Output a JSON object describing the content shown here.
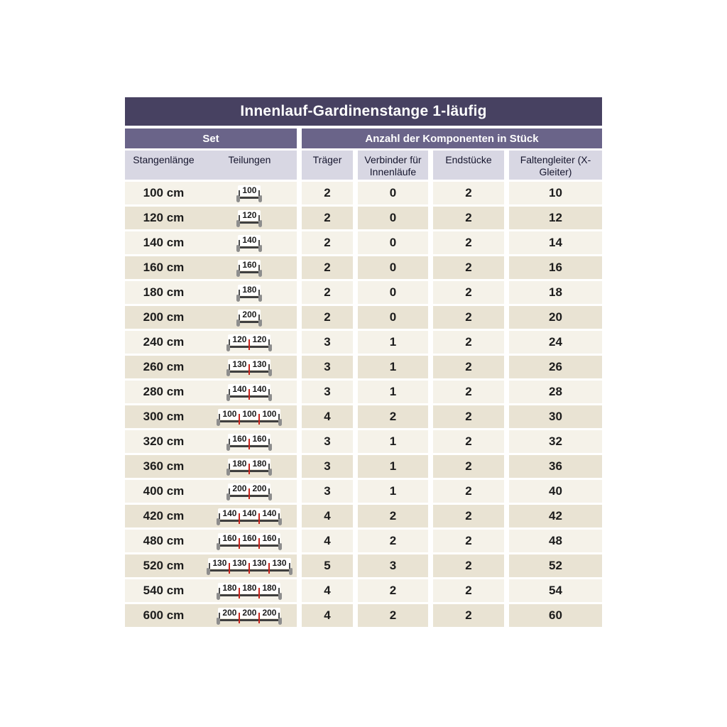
{
  "colors": {
    "title_bar": "#474161",
    "group_bar": "#6a6489",
    "column_header_bg": "#d8d7e3",
    "row_light": "#f5f2e9",
    "row_dark": "#e9e3d3",
    "connector_tick": "#c9251d",
    "rod_line": "#3f3f3f",
    "rod_end_post": "#8d8d8d"
  },
  "chart_data": {
    "type": "table",
    "title": "Innenlauf-Gardinenstange 1-läufig",
    "group_headers": [
      "Set",
      "Anzahl der Komponenten in Stück"
    ],
    "columns": [
      "Stangenlänge",
      "Teilungen",
      "Träger",
      "Verbinder für Innenläufe",
      "Endstücke",
      "Faltengleiter (X-Gleiter)"
    ],
    "rows": [
      [
        "100 cm",
        [
          100
        ],
        "2",
        "0",
        "2",
        "10"
      ],
      [
        "120 cm",
        [
          120
        ],
        "2",
        "0",
        "2",
        "12"
      ],
      [
        "140 cm",
        [
          140
        ],
        "2",
        "0",
        "2",
        "14"
      ],
      [
        "160 cm",
        [
          160
        ],
        "2",
        "0",
        "2",
        "16"
      ],
      [
        "180 cm",
        [
          180
        ],
        "2",
        "0",
        "2",
        "18"
      ],
      [
        "200 cm",
        [
          200
        ],
        "2",
        "0",
        "2",
        "20"
      ],
      [
        "240 cm",
        [
          120,
          120
        ],
        "3",
        "1",
        "2",
        "24"
      ],
      [
        "260 cm",
        [
          130,
          130
        ],
        "3",
        "1",
        "2",
        "26"
      ],
      [
        "280 cm",
        [
          140,
          140
        ],
        "3",
        "1",
        "2",
        "28"
      ],
      [
        "300 cm",
        [
          100,
          100,
          100
        ],
        "4",
        "2",
        "2",
        "30"
      ],
      [
        "320 cm",
        [
          160,
          160
        ],
        "3",
        "1",
        "2",
        "32"
      ],
      [
        "360 cm",
        [
          180,
          180
        ],
        "3",
        "1",
        "2",
        "36"
      ],
      [
        "400 cm",
        [
          200,
          200
        ],
        "3",
        "1",
        "2",
        "40"
      ],
      [
        "420 cm",
        [
          140,
          140,
          140
        ],
        "4",
        "2",
        "2",
        "42"
      ],
      [
        "480 cm",
        [
          160,
          160,
          160
        ],
        "4",
        "2",
        "2",
        "48"
      ],
      [
        "520 cm",
        [
          130,
          130,
          130,
          130
        ],
        "5",
        "3",
        "2",
        "52"
      ],
      [
        "540 cm",
        [
          180,
          180,
          180
        ],
        "4",
        "2",
        "2",
        "54"
      ],
      [
        "600 cm",
        [
          200,
          200,
          200
        ],
        "4",
        "2",
        "2",
        "60"
      ]
    ]
  }
}
